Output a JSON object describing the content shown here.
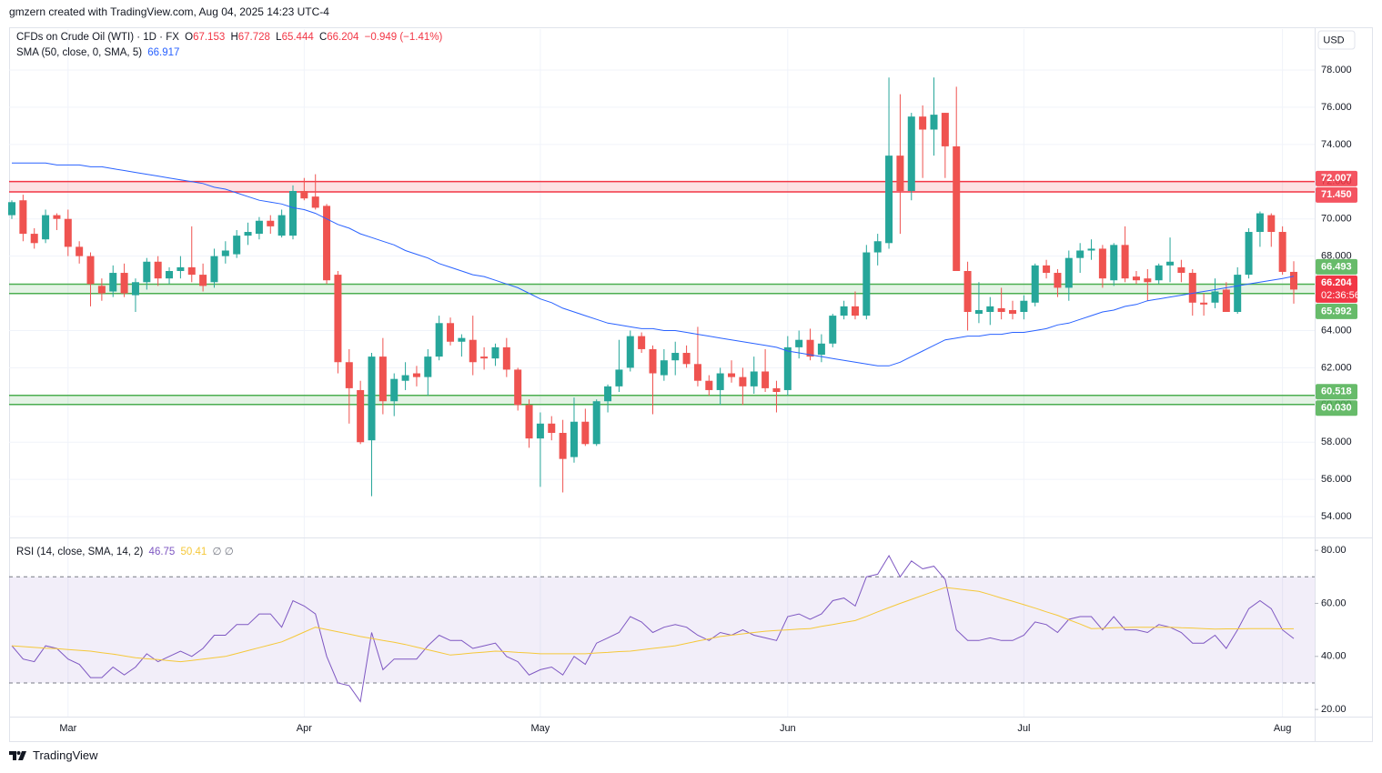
{
  "header": "gmzern created with TradingView.com, Aug 04, 2025 14:23 UTC-4",
  "footer": "TradingView",
  "chart_data": [
    {
      "type": "candlestick",
      "title": "CFDs on Crude Oil (WTI) · 1D · FX",
      "ohlc_labels": [
        "O",
        "H",
        "L",
        "C"
      ],
      "change": "−0.949 (−1.41%)",
      "currency": "USD",
      "countdown": "02:36:56",
      "up_color": "#26a69a",
      "down_color": "#ef5350",
      "grid": true,
      "ylim": [
        52.88,
        80.2
      ],
      "yticks": [
        {
          "value": 54,
          "label": "54.000"
        },
        {
          "value": 56,
          "label": "56.000"
        },
        {
          "value": 58,
          "label": "58.000"
        },
        {
          "value": 60,
          "label": "60.000"
        },
        {
          "value": 62,
          "label": "62.000"
        },
        {
          "value": 64,
          "label": "64.000"
        },
        {
          "value": 66,
          "label": "66.000"
        },
        {
          "value": 68,
          "label": "68.000"
        },
        {
          "value": 70,
          "label": "70.000"
        },
        {
          "value": 72,
          "label": "72.000"
        },
        {
          "value": 74,
          "label": "74.000"
        },
        {
          "value": 76,
          "label": "76.000"
        },
        {
          "value": 78,
          "label": "78.000"
        }
      ],
      "categories": [
        null,
        null,
        null,
        null,
        null,
        "Mar",
        null,
        null,
        null,
        null,
        null,
        null,
        null,
        null,
        null,
        null,
        null,
        null,
        null,
        null,
        null,
        null,
        null,
        null,
        null,
        null,
        "Apr",
        null,
        null,
        null,
        null,
        null,
        null,
        null,
        null,
        null,
        null,
        null,
        null,
        null,
        null,
        null,
        null,
        null,
        null,
        null,
        null,
        "May",
        null,
        null,
        null,
        null,
        null,
        null,
        null,
        null,
        null,
        null,
        null,
        null,
        null,
        null,
        null,
        null,
        null,
        null,
        null,
        null,
        null,
        "Jun",
        null,
        null,
        null,
        null,
        null,
        null,
        null,
        null,
        null,
        null,
        null,
        null,
        null,
        null,
        null,
        null,
        null,
        null,
        null,
        null,
        "Jul",
        null,
        null,
        null,
        null,
        null,
        null,
        null,
        null,
        null,
        null,
        null,
        null,
        null,
        null,
        null,
        null,
        null,
        null,
        null,
        null,
        null,
        null,
        "Aug",
        null
      ],
      "open": [
        70.2,
        71.0,
        69.2,
        68.9,
        70.2,
        70.0,
        68.5,
        68.0,
        66.4,
        66.1,
        67.1,
        65.9,
        66.6,
        67.7,
        66.8,
        67.2,
        67.4,
        67.0,
        66.6,
        68.0,
        68.1,
        69.1,
        69.2,
        69.9,
        69.1,
        69.1,
        71.5,
        71.2,
        70.7,
        67.0,
        62.3,
        60.8,
        58.1,
        62.6,
        60.2,
        61.3,
        61.7,
        61.5,
        62.6,
        64.4,
        63.4,
        63.5,
        62.6,
        62.5,
        63.1,
        61.9,
        60.0,
        58.2,
        59.0,
        58.5,
        57.2,
        59.1,
        57.9,
        60.2,
        61.0,
        62.0,
        63.7,
        63.0,
        61.6,
        62.4,
        62.8,
        62.2,
        61.3,
        60.8,
        61.7,
        61.5,
        61.0,
        61.8,
        60.9,
        60.8,
        63.1,
        63.5,
        62.7,
        63.3,
        64.8,
        65.3,
        64.8,
        68.2,
        68.7,
        73.4,
        71.5,
        75.5,
        74.8,
        75.7,
        73.9,
        67.2,
        64.9,
        65.0,
        65.2,
        65.1,
        65.0,
        65.5,
        67.5,
        67.1,
        66.3,
        67.9,
        68.3,
        68.4,
        66.7,
        68.6,
        66.9,
        66.8,
        66.7,
        67.5,
        67.4,
        67.1,
        65.5,
        65.5,
        66.2,
        65.0,
        67.0,
        69.3,
        70.2,
        69.3,
        67.153
      ],
      "high": [
        71.0,
        71.3,
        69.5,
        70.5,
        70.3,
        70.5,
        68.8,
        68.2,
        66.8,
        67.5,
        67.6,
        66.8,
        67.9,
        68.0,
        67.4,
        68.0,
        69.6,
        67.6,
        68.4,
        68.8,
        69.4,
        69.8,
        70.1,
        70.2,
        70.5,
        71.8,
        72.2,
        72.4,
        70.8,
        67.2,
        63.0,
        61.3,
        62.8,
        63.6,
        61.7,
        62.3,
        62.1,
        63.0,
        64.8,
        64.7,
        63.8,
        64.8,
        63.1,
        63.3,
        63.6,
        62.0,
        60.3,
        59.6,
        59.4,
        59.2,
        60.4,
        59.8,
        60.3,
        61.1,
        63.5,
        64.0,
        63.9,
        63.2,
        63.0,
        63.4,
        63.2,
        64.2,
        61.6,
        62.0,
        62.4,
        62.0,
        62.6,
        63.0,
        61.3,
        63.7,
        64.0,
        64.1,
        63.8,
        64.9,
        65.6,
        66.1,
        68.6,
        69.2,
        77.6,
        76.7,
        75.7,
        76.1,
        77.6,
        75.7,
        77.1,
        67.7,
        66.6,
        65.8,
        66.3,
        65.6,
        65.9,
        67.6,
        67.8,
        67.3,
        68.3,
        68.7,
        68.9,
        68.6,
        68.7,
        69.6,
        67.2,
        67.3,
        67.6,
        69.0,
        67.8,
        67.3,
        66.0,
        66.8,
        66.6,
        67.4,
        69.5,
        70.4,
        70.3,
        69.6,
        67.728
      ],
      "low": [
        70.0,
        68.8,
        68.4,
        68.7,
        69.4,
        68.0,
        67.6,
        65.3,
        65.6,
        65.8,
        65.8,
        65.0,
        66.2,
        66.4,
        66.5,
        66.8,
        66.6,
        66.1,
        66.3,
        67.6,
        67.9,
        68.6,
        68.9,
        69.2,
        69.0,
        68.9,
        71.0,
        70.5,
        66.5,
        61.7,
        59.0,
        57.9,
        55.1,
        59.5,
        59.4,
        60.8,
        61.0,
        60.5,
        62.4,
        63.2,
        62.6,
        61.6,
        61.9,
        62.1,
        61.5,
        59.7,
        57.7,
        55.6,
        58.1,
        55.3,
        56.9,
        57.8,
        57.8,
        59.6,
        60.7,
        61.8,
        62.8,
        59.5,
        61.3,
        61.6,
        62.0,
        61.0,
        60.5,
        60.0,
        61.2,
        60.0,
        60.6,
        60.7,
        59.6,
        60.5,
        62.5,
        62.4,
        62.3,
        63.1,
        64.6,
        64.6,
        64.6,
        67.5,
        68.4,
        69.2,
        71.0,
        72.2,
        73.4,
        72.2,
        67.2,
        64.0,
        64.4,
        64.3,
        64.6,
        64.6,
        64.6,
        65.3,
        66.8,
        65.8,
        65.6,
        67.1,
        67.8,
        66.3,
        66.4,
        66.6,
        66.5,
        65.6,
        66.5,
        66.6,
        66.6,
        64.8,
        64.8,
        65.2,
        65.0,
        64.9,
        66.8,
        68.5,
        68.5,
        67.0,
        65.444
      ],
      "close": [
        70.9,
        69.2,
        68.7,
        70.2,
        70.0,
        68.5,
        68.0,
        66.5,
        66.0,
        67.1,
        66.0,
        66.6,
        67.7,
        66.8,
        67.2,
        67.4,
        67.0,
        66.4,
        68.0,
        68.3,
        69.1,
        69.3,
        69.9,
        69.6,
        70.2,
        71.5,
        71.1,
        70.6,
        66.7,
        62.3,
        60.9,
        58.0,
        62.6,
        60.2,
        61.4,
        61.6,
        61.5,
        62.6,
        64.4,
        63.4,
        63.6,
        62.3,
        62.5,
        63.1,
        61.9,
        60.0,
        58.2,
        59.0,
        58.5,
        57.1,
        59.1,
        57.9,
        60.2,
        61.0,
        61.9,
        63.7,
        63.0,
        61.7,
        62.4,
        62.8,
        62.2,
        61.3,
        60.8,
        61.7,
        61.5,
        61.0,
        61.8,
        60.9,
        60.7,
        63.1,
        63.5,
        62.6,
        63.3,
        64.8,
        65.3,
        64.8,
        68.2,
        68.8,
        73.4,
        71.5,
        75.5,
        74.8,
        75.6,
        73.9,
        67.2,
        65.0,
        65.1,
        65.3,
        65.0,
        64.9,
        65.6,
        67.5,
        67.1,
        66.3,
        67.9,
        68.3,
        68.4,
        66.8,
        68.6,
        66.8,
        66.7,
        66.6,
        67.5,
        67.7,
        67.1,
        65.5,
        65.4,
        66.1,
        65.0,
        67.0,
        69.3,
        70.3,
        69.3,
        67.153,
        66.204
      ],
      "last_color": "#f23645",
      "sma": {
        "name": "SMA (50, close, 0, SMA, 5)",
        "color": "#2962ff",
        "values": [
          73.0,
          73.0,
          73.0,
          73.0,
          72.9,
          72.9,
          72.9,
          72.8,
          72.8,
          72.7,
          72.6,
          72.5,
          72.4,
          72.3,
          72.2,
          72.1,
          72.0,
          71.9,
          71.7,
          71.6,
          71.4,
          71.2,
          71.0,
          70.9,
          70.8,
          70.6,
          70.5,
          70.3,
          70.0,
          69.7,
          69.5,
          69.2,
          69.0,
          68.8,
          68.6,
          68.3,
          68.1,
          67.9,
          67.6,
          67.4,
          67.2,
          67.0,
          66.9,
          66.7,
          66.5,
          66.3,
          66.0,
          65.7,
          65.5,
          65.2,
          65.0,
          64.8,
          64.6,
          64.4,
          64.3,
          64.2,
          64.1,
          64.1,
          64.0,
          64.0,
          63.9,
          63.8,
          63.7,
          63.6,
          63.5,
          63.4,
          63.3,
          63.2,
          63.1,
          62.9,
          62.8,
          62.7,
          62.6,
          62.5,
          62.4,
          62.3,
          62.2,
          62.1,
          62.1,
          62.3,
          62.6,
          62.9,
          63.2,
          63.5,
          63.6,
          63.7,
          63.7,
          63.8,
          63.8,
          63.9,
          63.9,
          64.0,
          64.1,
          64.3,
          64.4,
          64.6,
          64.8,
          65.0,
          65.1,
          65.3,
          65.4,
          65.6,
          65.7,
          65.8,
          65.9,
          66.0,
          66.1,
          66.2,
          66.3,
          66.4,
          66.5,
          66.6,
          66.7,
          66.8,
          66.917
        ]
      },
      "zones": [
        {
          "color": "#f23645",
          "top": 72.007,
          "bottom": {
            "value": 71.45,
            "label": "71.450"
          }
        },
        {
          "color": "#4caf50",
          "top": 66.493,
          "bottom": 65.992
        },
        {
          "color": "#4caf50",
          "top": 60.518,
          "bottom": {
            "value": 60.03,
            "label": "60.030"
          }
        }
      ]
    },
    {
      "type": "line",
      "title": "RSI (14, close, SMA, 14, 2)",
      "flags": "∅ ∅",
      "ylim": [
        17.3,
        84.5
      ],
      "yticks": [
        {
          "value": 20,
          "label": "20.00"
        },
        {
          "value": 40,
          "label": "40.00"
        },
        {
          "value": 60,
          "label": "60.00"
        },
        {
          "value": 80,
          "label": "80.00"
        }
      ],
      "bands": [
        30,
        70
      ],
      "band_color": "#7e57c2",
      "series": [
        {
          "color": "#7e57c2",
          "values": [
            44,
            39,
            38,
            44,
            43,
            39,
            37,
            32,
            32,
            36,
            33,
            36,
            41,
            38,
            40,
            42,
            40,
            43,
            48,
            48,
            52,
            52,
            56,
            56,
            51,
            61,
            59,
            56,
            40,
            30,
            29,
            23,
            49,
            35,
            39,
            39,
            39,
            44,
            48,
            46,
            46,
            43,
            44,
            45,
            40,
            38,
            33,
            35,
            36,
            33,
            40,
            37,
            45,
            47,
            49,
            55,
            53,
            49,
            51,
            52,
            51,
            48,
            46,
            49,
            48,
            50,
            48,
            47,
            46,
            55,
            56,
            54,
            56,
            61,
            62,
            59,
            70,
            71,
            78,
            70,
            76,
            73,
            74,
            69,
            50,
            46,
            46,
            47,
            46,
            46,
            48,
            53,
            52,
            49,
            54,
            55,
            55,
            50,
            55,
            50,
            50,
            49,
            52,
            51,
            49,
            45,
            45,
            48,
            43,
            50,
            58,
            61,
            58,
            50,
            46.75
          ]
        },
        {
          "color": "#f5c83a",
          "values": [
            44,
            43.7,
            43.4,
            43.1,
            42.9,
            42.6,
            42.3,
            42,
            41.4,
            40.9,
            40.2,
            39.5,
            39.1,
            38.8,
            38.4,
            38,
            38.5,
            39,
            39.5,
            40,
            41.1,
            42.2,
            43.3,
            44.4,
            45.5,
            47.3,
            49.2,
            51,
            50.1,
            49.3,
            48.4,
            47.5,
            46.8,
            46,
            45.3,
            44.5,
            43.5,
            42.5,
            41.5,
            40.5,
            40.9,
            41.3,
            41.6,
            42,
            41.8,
            41.5,
            41.3,
            41,
            41,
            41,
            41,
            41,
            41.3,
            41.5,
            41.8,
            42,
            42.5,
            43,
            43.5,
            44,
            44.9,
            45.8,
            46.6,
            47.5,
            48,
            48.5,
            49,
            49.5,
            49.8,
            50,
            50.3,
            50.5,
            51.3,
            52,
            52.8,
            53.5,
            55.1,
            56.8,
            58.4,
            60,
            61.5,
            63,
            64.5,
            66,
            65.5,
            65,
            64.5,
            63.3,
            62,
            60.8,
            59.5,
            58.2,
            56.8,
            55.5,
            53.8,
            52.2,
            50.5,
            50.6,
            50.8,
            50.9,
            51,
            51,
            51,
            51,
            50.8,
            50.7,
            50.5,
            50.3,
            50.4,
            50.4,
            50.5,
            50.5,
            50.5,
            50.4,
            50.41
          ]
        }
      ]
    }
  ]
}
